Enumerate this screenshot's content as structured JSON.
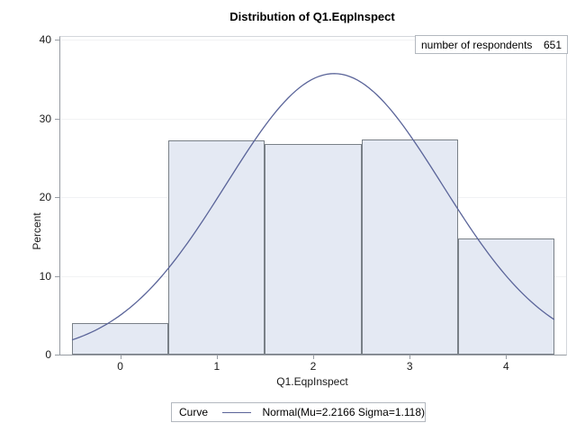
{
  "title": "Distribution of Q1.EqpInspect",
  "inset": {
    "label": "number of respondents",
    "value": "651"
  },
  "legend": {
    "label": "Curve",
    "entry": "Normal(Mu=2.2166 Sigma=1.118)"
  },
  "chart_data": {
    "type": "bar",
    "subtype": "histogram-with-normal-curve",
    "title": "Distribution of Q1.EqpInspect",
    "xlabel": "Q1.EqpInspect",
    "ylabel": "Percent",
    "n_respondents": 651,
    "bin_midpoints": [
      0,
      1,
      2,
      3,
      4
    ],
    "bin_width": 1,
    "percents": [
      3.99,
      27.19,
      26.73,
      27.34,
      14.75
    ],
    "xlim": [
      -0.5,
      4.5
    ],
    "ylim": [
      0,
      40
    ],
    "xticks": [
      0,
      1,
      2,
      3,
      4
    ],
    "yticks": [
      0,
      10,
      20,
      30,
      40
    ],
    "grid": true,
    "legend_position": "bottom-outside",
    "curve": {
      "type": "normal",
      "mu": 2.2166,
      "sigma": 1.118,
      "range": [
        -0.5,
        4.5
      ]
    },
    "colors": {
      "bar_fill": "#e4e9f3",
      "bar_edge": "#798087",
      "curve": "#5a6499",
      "gridline": "#f1f2f4",
      "axis": "#979ca3",
      "box_border": "#b3b8bf"
    }
  }
}
